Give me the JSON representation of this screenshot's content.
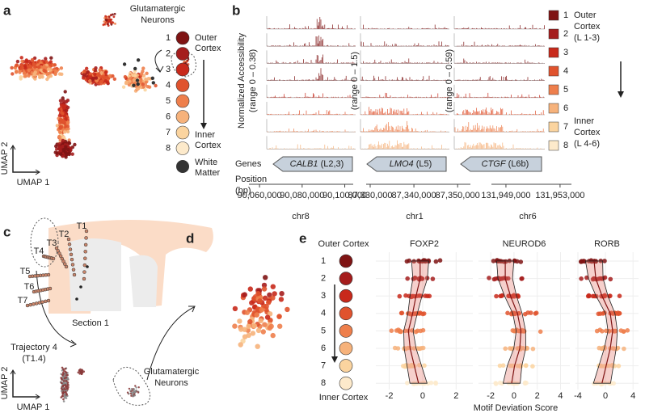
{
  "panel_a": {
    "label": "a",
    "inset_title": [
      "Glutamatergic",
      "Neurons"
    ],
    "umap_x": "UMAP 1",
    "umap_y": "UMAP 2",
    "legend": {
      "clusters": [
        {
          "name": "1",
          "color": "#7f1414"
        },
        {
          "name": "2",
          "color": "#a51d1d"
        },
        {
          "name": "3",
          "color": "#c8291b"
        },
        {
          "name": "4",
          "color": "#e0532e"
        },
        {
          "name": "5",
          "color": "#ee7f4c"
        },
        {
          "name": "6",
          "color": "#f6b27b"
        },
        {
          "name": "7",
          "color": "#fbd49f"
        },
        {
          "name": "8",
          "color": "#fdeacb"
        }
      ],
      "white_matter": {
        "label": [
          "White",
          "Matter"
        ],
        "color": "#333333"
      },
      "outer": [
        "Outer",
        "Cortex"
      ],
      "inner": [
        "Inner",
        "Cortex"
      ]
    }
  },
  "panel_b": {
    "label": "b",
    "y_title": "Normalized Accessibility",
    "genes_label": "Genes",
    "position_label": [
      "Position",
      "(bp)"
    ],
    "regions": [
      {
        "range_label": "(range 0 – 0.38)",
        "gene": "CALB1",
        "layer": "(L2,3)",
        "chrom": "chr8",
        "xlim": [
          90052000,
          90107000
        ],
        "xticks": [
          {
            "value": 90060000,
            "label": "90,060,000"
          },
          {
            "value": 90080000,
            "label": "90,080,000"
          },
          {
            "value": 90100000,
            "label": "90,100,000"
          }
        ]
      },
      {
        "range_label": "(range 0 – 1.5)",
        "gene": "LMO4",
        "layer": "(L5)",
        "chrom": "chr1",
        "xlim": [
          87327600,
          87354400
        ],
        "xticks": [
          {
            "value": 87330000,
            "label": "87,330,000"
          },
          {
            "value": 87340000,
            "label": "87,340,000"
          },
          {
            "value": 87350000,
            "label": "87,350,000"
          }
        ]
      },
      {
        "range_label": "(range 0 – 0.59)",
        "gene": "CTGF",
        "layer": "(L6b)",
        "chrom": "chr6",
        "xlim": [
          131947450,
          131954320
        ],
        "xticks": [
          {
            "value": 131949000,
            "label": "131,949,000"
          },
          {
            "value": 131953000,
            "label": "131,953,000"
          }
        ]
      }
    ],
    "legend": {
      "outer": [
        "Outer",
        "Cortex",
        "(L 1-3)"
      ],
      "inner": [
        "Inner",
        "Cortex",
        "(L 4-6)"
      ]
    }
  },
  "panel_c": {
    "label": "c",
    "trajectories": [
      "T1",
      "T2",
      "T3",
      "T4",
      "T5",
      "T6",
      "T7"
    ],
    "section": "Section 1",
    "trajectory": [
      "Trajectory 4",
      "(T1.4)"
    ],
    "inset_title": [
      "Glutamatergic",
      "Neurons"
    ],
    "umap_x": "UMAP 1",
    "umap_y": "UMAP 2"
  },
  "panel_d": {
    "label": "d"
  },
  "panel_e": {
    "label": "e",
    "outer": "Outer Cortex",
    "inner": "Inner Cortex",
    "x_title": "Motif Deviation Score",
    "motifs": [
      {
        "name": "FOXP2",
        "xlim": [
          -2.8,
          3.0
        ],
        "xticks": [
          -2,
          0,
          2
        ],
        "trend": [
          -0.15,
          -0.15,
          -0.4,
          -0.6,
          -0.85,
          -0.75,
          -0.5,
          -0.25
        ]
      },
      {
        "name": "NEUROD6",
        "xlim": [
          -3.05,
          4.8
        ],
        "xticks": [
          -2,
          0,
          2,
          4
        ],
        "trend": [
          -0.75,
          -0.75,
          -0.3,
          0.3,
          0.6,
          0.5,
          0.05,
          -0.2
        ]
      },
      {
        "name": "RORB",
        "xlim": [
          -4.35,
          4.8
        ],
        "xticks": [
          -4,
          0,
          4
        ],
        "trend": [
          -1.65,
          -1.4,
          -0.5,
          0.7,
          1.05,
          0.7,
          0.1,
          -0.5
        ]
      }
    ]
  }
}
